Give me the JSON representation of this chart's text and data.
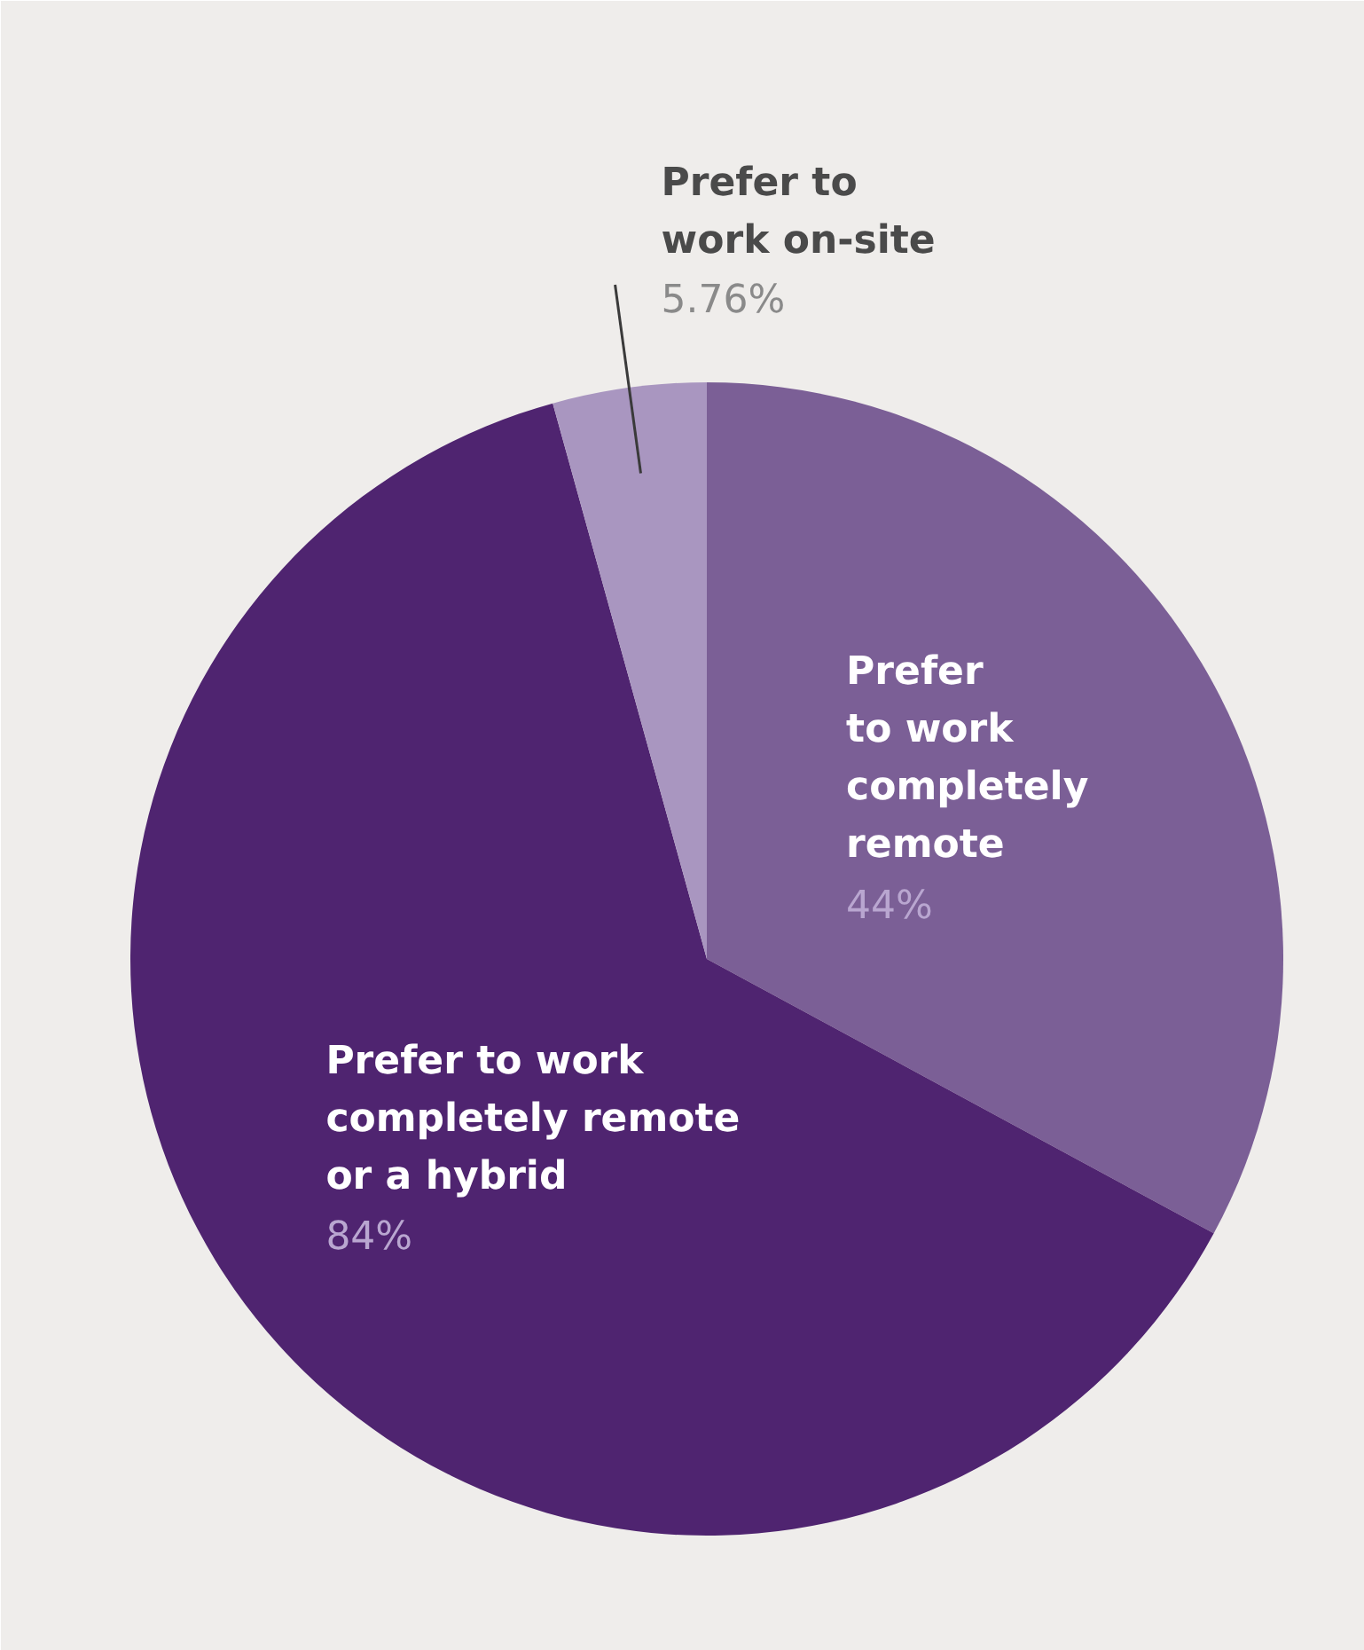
{
  "chart_data": {
    "type": "pie",
    "categories": [
      "Prefer\nto work\ncompletely\nremote",
      "Prefer to work\ncompletely remote\nor a hybrid",
      "Prefer to\nwork on-site"
    ],
    "values": [
      44,
      84,
      5.76
    ],
    "colors": [
      "#7b5f96",
      "#4f2470",
      "#a996c0"
    ],
    "value_labels": [
      "44%",
      "84%",
      "5.76%"
    ]
  }
}
